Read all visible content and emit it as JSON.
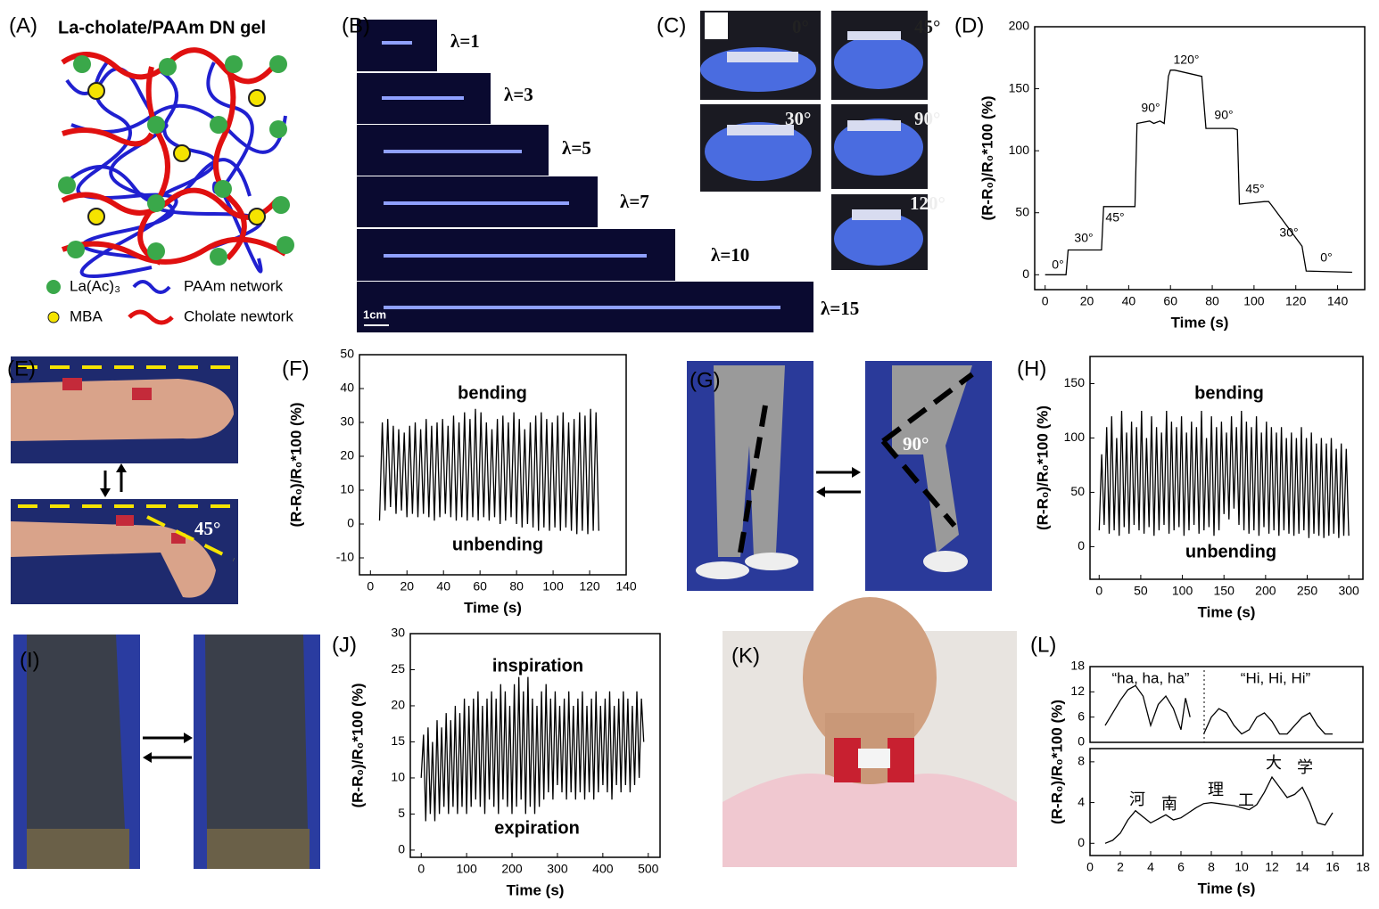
{
  "panels": {
    "letters": [
      "(A)",
      "(B)",
      "(C)",
      "(D)",
      "(E)",
      "(F)",
      "(G)",
      "(H)",
      "(I)",
      "(J)",
      "(K)",
      "(L)"
    ],
    "a_title": "La-cholate/PAAm DN gel",
    "a_legend": [
      "La(Ac)₃",
      "PAAm network",
      "MBA",
      "Cholate newtork"
    ],
    "b_labels": [
      "λ=1",
      "λ=3",
      "λ=5",
      "λ=7",
      "λ=10",
      "λ=15"
    ],
    "b_scale": "1cm",
    "c_angles": [
      "0°",
      "45°",
      "30°",
      "90°",
      "120°"
    ],
    "e_angle": "45°",
    "g_angle": "90°"
  },
  "chart_data": [
    {
      "type": "line",
      "xlabel": "Time (s)",
      "ylabel": "(R-R₀)/R₀*100 (%)",
      "xlim": [
        -5,
        153
      ],
      "ylim": [
        -12,
        200
      ],
      "xticks": [
        0,
        20,
        40,
        60,
        80,
        100,
        120,
        140
      ],
      "yticks": [
        0,
        50,
        100,
        150,
        200
      ],
      "x": [
        0,
        10,
        11,
        27,
        28,
        43,
        44,
        50,
        52,
        55,
        57,
        59,
        60,
        62,
        75,
        77,
        90,
        92,
        93,
        105,
        107,
        108,
        123,
        125,
        147
      ],
      "values": [
        0,
        0,
        20,
        20,
        55,
        55,
        122,
        124,
        122,
        124,
        122,
        160,
        165,
        165,
        160,
        118,
        118,
        117,
        57,
        59,
        59,
        57,
        23,
        3,
        2
      ],
      "color": "#000000",
      "annotations": [
        "0°",
        "30°",
        "45°",
        "90°",
        "120°",
        "90°",
        "45°",
        "30°",
        "0°"
      ]
    },
    {
      "type": "line",
      "xlabel": "Time (s)",
      "ylabel": "(R-R₀)/R₀*100 (%)",
      "xlim": [
        -6,
        140
      ],
      "ylim": [
        -15,
        50
      ],
      "xticks": [
        0,
        20,
        40,
        60,
        80,
        100,
        120,
        140
      ],
      "yticks": [
        -10,
        0,
        10,
        20,
        30,
        40,
        50
      ],
      "x": [
        5,
        6.5,
        8,
        9.5,
        11,
        12.5,
        14,
        15.5,
        17,
        18.5,
        20,
        21.5,
        23,
        24.5,
        26,
        27.5,
        29,
        30.5,
        32,
        33.5,
        35,
        36.5,
        38,
        39.5,
        41,
        42.5,
        44,
        45.5,
        47,
        48.5,
        50,
        51.5,
        53,
        54.5,
        56,
        57.5,
        59,
        60.5,
        62,
        63.5,
        65,
        66.5,
        68,
        69.5,
        71,
        72.5,
        74,
        75.5,
        77,
        78.5,
        80,
        81.5,
        83,
        84.5,
        86,
        87.5,
        89,
        90.5,
        92,
        93.5,
        95,
        96.5,
        98,
        99.5,
        101,
        102.5,
        104,
        105.5,
        107,
        108.5,
        110,
        111.5,
        113,
        114.5,
        116,
        117.5,
        119,
        120.5,
        122,
        123.5,
        125
      ],
      "values": [
        1,
        30,
        4,
        31,
        5,
        29,
        3,
        28,
        4,
        27,
        2,
        29,
        3,
        30,
        2,
        28,
        3,
        31,
        2,
        29,
        1,
        30,
        2,
        31,
        3,
        29,
        2,
        32,
        1,
        30,
        2,
        33,
        1,
        31,
        2,
        34,
        1,
        33,
        2,
        30,
        1,
        28,
        2,
        31,
        0,
        32,
        1,
        30,
        2,
        33,
        0,
        31,
        -1,
        28,
        0,
        30,
        -1,
        32,
        -2,
        33,
        -1,
        31,
        -2,
        30,
        -1,
        32,
        -2,
        33,
        -1,
        30,
        -2,
        31,
        -3,
        33,
        -2,
        32,
        -3,
        34,
        -2,
        33,
        -2
      ],
      "color": "#000000",
      "annotations": [
        "bending",
        "unbending"
      ]
    },
    {
      "type": "line",
      "xlabel": "Time (s)",
      "ylabel": "(R-R₀)/R₀*100 (%)",
      "xlim": [
        -11,
        317
      ],
      "ylim": [
        -30,
        175
      ],
      "xticks": [
        0,
        50,
        100,
        150,
        200,
        250,
        300
      ],
      "yticks": [
        0,
        50,
        100,
        150
      ],
      "x": [
        0,
        3,
        6,
        9,
        12,
        15,
        18,
        21,
        24,
        27,
        30,
        33,
        36,
        39,
        42,
        45,
        48,
        51,
        54,
        57,
        60,
        63,
        66,
        69,
        72,
        75,
        78,
        81,
        84,
        87,
        90,
        93,
        96,
        99,
        102,
        105,
        108,
        111,
        114,
        117,
        120,
        123,
        126,
        129,
        132,
        135,
        138,
        141,
        144,
        147,
        150,
        153,
        156,
        159,
        162,
        165,
        168,
        171,
        174,
        177,
        180,
        183,
        186,
        189,
        192,
        195,
        198,
        201,
        204,
        207,
        210,
        213,
        216,
        219,
        222,
        225,
        228,
        231,
        234,
        237,
        240,
        243,
        246,
        249,
        252,
        255,
        258,
        261,
        264,
        267,
        270,
        273,
        276,
        279,
        282,
        285,
        288,
        291,
        294,
        297,
        300
      ],
      "values": [
        15,
        85,
        20,
        110,
        12,
        120,
        15,
        100,
        10,
        125,
        18,
        105,
        12,
        115,
        20,
        110,
        15,
        125,
        12,
        100,
        18,
        120,
        10,
        110,
        15,
        105,
        20,
        125,
        12,
        115,
        15,
        110,
        18,
        120,
        10,
        105,
        15,
        115,
        20,
        110,
        12,
        125,
        15,
        100,
        18,
        120,
        10,
        110,
        15,
        115,
        30,
        105,
        25,
        120,
        35,
        110,
        20,
        125,
        15,
        115,
        12,
        110,
        15,
        120,
        10,
        105,
        18,
        115,
        12,
        110,
        15,
        105,
        10,
        110,
        15,
        100,
        12,
        105,
        10,
        100,
        12,
        110,
        15,
        100,
        8,
        105,
        12,
        95,
        10,
        100,
        8,
        95,
        10,
        100,
        12,
        90,
        8,
        95,
        10,
        90,
        10
      ],
      "color": "#000000",
      "annotations": [
        "bending",
        "unbending"
      ]
    },
    {
      "type": "line",
      "xlabel": "Time (s)",
      "ylabel": "(R-R₀)/R₀*100 (%)",
      "xlim": [
        -24,
        526
      ],
      "ylim": [
        -1,
        30
      ],
      "xticks": [
        0,
        100,
        200,
        300,
        400,
        500
      ],
      "yticks": [
        0,
        5,
        10,
        15,
        20,
        25,
        30
      ],
      "x": [
        0,
        5,
        10,
        15,
        20,
        25,
        30,
        35,
        40,
        45,
        50,
        55,
        60,
        65,
        70,
        75,
        80,
        85,
        90,
        95,
        100,
        105,
        110,
        115,
        120,
        125,
        130,
        135,
        140,
        145,
        150,
        155,
        160,
        165,
        170,
        175,
        180,
        185,
        190,
        195,
        200,
        205,
        210,
        215,
        220,
        225,
        230,
        235,
        240,
        245,
        250,
        255,
        260,
        265,
        270,
        275,
        280,
        285,
        290,
        295,
        300,
        305,
        310,
        315,
        320,
        325,
        330,
        335,
        340,
        345,
        350,
        355,
        360,
        365,
        370,
        375,
        380,
        385,
        390,
        395,
        400,
        405,
        410,
        415,
        420,
        425,
        430,
        435,
        440,
        445,
        450,
        455,
        460,
        465,
        470,
        475,
        480,
        485,
        490
      ],
      "values": [
        10,
        16,
        4,
        17,
        5,
        15,
        4,
        18,
        5,
        17,
        6,
        19,
        5,
        18,
        6,
        20,
        5,
        19,
        6,
        21,
        5,
        20,
        6,
        21,
        7,
        22,
        6,
        20,
        5,
        21,
        7,
        22,
        6,
        21,
        5,
        23,
        7,
        22,
        6,
        20,
        5,
        23,
        6,
        24,
        7,
        22,
        5,
        24,
        6,
        21,
        5,
        20,
        6,
        22,
        7,
        23,
        8,
        21,
        7,
        22,
        9,
        20,
        8,
        21,
        7,
        22,
        8,
        20,
        7,
        21,
        8,
        22,
        7,
        20,
        8,
        21,
        7,
        22,
        8,
        20,
        9,
        21,
        8,
        22,
        7,
        20,
        9,
        21,
        8,
        22,
        9,
        21,
        8,
        20,
        9,
        22,
        10,
        21,
        15
      ],
      "color": "#000000",
      "annotations": [
        "inspiration",
        "expiration"
      ]
    },
    {
      "type": "line",
      "ylabel": "(R-R₀)/R₀*100 (%)",
      "xlim": [
        0,
        18
      ],
      "ylim": [
        0,
        18
      ],
      "yticks": [
        0,
        6,
        12,
        18
      ],
      "x": [
        1,
        2,
        2.5,
        3,
        3.5,
        4,
        4.5,
        5,
        5.5,
        6,
        6.3,
        6.6,
        7,
        7.5,
        8,
        8.5,
        9,
        9.5,
        10,
        10.5,
        11,
        11.5,
        12,
        12.5,
        13,
        13.5,
        14,
        14.5,
        15,
        15.5,
        16
      ],
      "values": [
        4,
        10,
        12.5,
        13.5,
        11,
        4,
        9,
        11,
        8,
        3,
        10.5,
        6,
        null,
        2,
        6,
        8,
        7,
        4,
        2,
        3,
        6,
        7,
        5,
        2,
        2,
        4,
        6,
        7,
        4,
        2,
        2
      ],
      "color": "#000000",
      "annotations": [
        "“ha, ha, ha”",
        "“Hi, Hi, Hi”"
      ]
    },
    {
      "type": "line",
      "xlabel": "Time (s)",
      "xlim": [
        0,
        18
      ],
      "ylim": [
        -1.2,
        9.3
      ],
      "xticks": [
        0,
        2,
        4,
        6,
        8,
        10,
        12,
        14,
        16,
        18
      ],
      "yticks": [
        0,
        4,
        8
      ],
      "x": [
        1,
        1.5,
        2,
        2.5,
        3,
        3.5,
        4,
        4.5,
        5,
        5.5,
        6,
        6.5,
        7,
        7.5,
        8,
        8.5,
        9,
        9.5,
        10,
        10.5,
        11,
        11.5,
        12,
        12.5,
        13,
        13.5,
        14,
        14.5,
        15,
        15.5,
        16
      ],
      "values": [
        0,
        0.3,
        1,
        2.3,
        3.2,
        2.6,
        2,
        2.4,
        2.8,
        2.3,
        2.5,
        3,
        3.5,
        3.9,
        4,
        3.9,
        3.8,
        3.7,
        3.5,
        3.3,
        3.8,
        5,
        6.5,
        5.5,
        4.5,
        4.8,
        5.5,
        4,
        2,
        1.8,
        3
      ],
      "color": "#000000",
      "annotations": [
        "河",
        "南",
        "理",
        "工",
        "大",
        "学"
      ]
    }
  ]
}
